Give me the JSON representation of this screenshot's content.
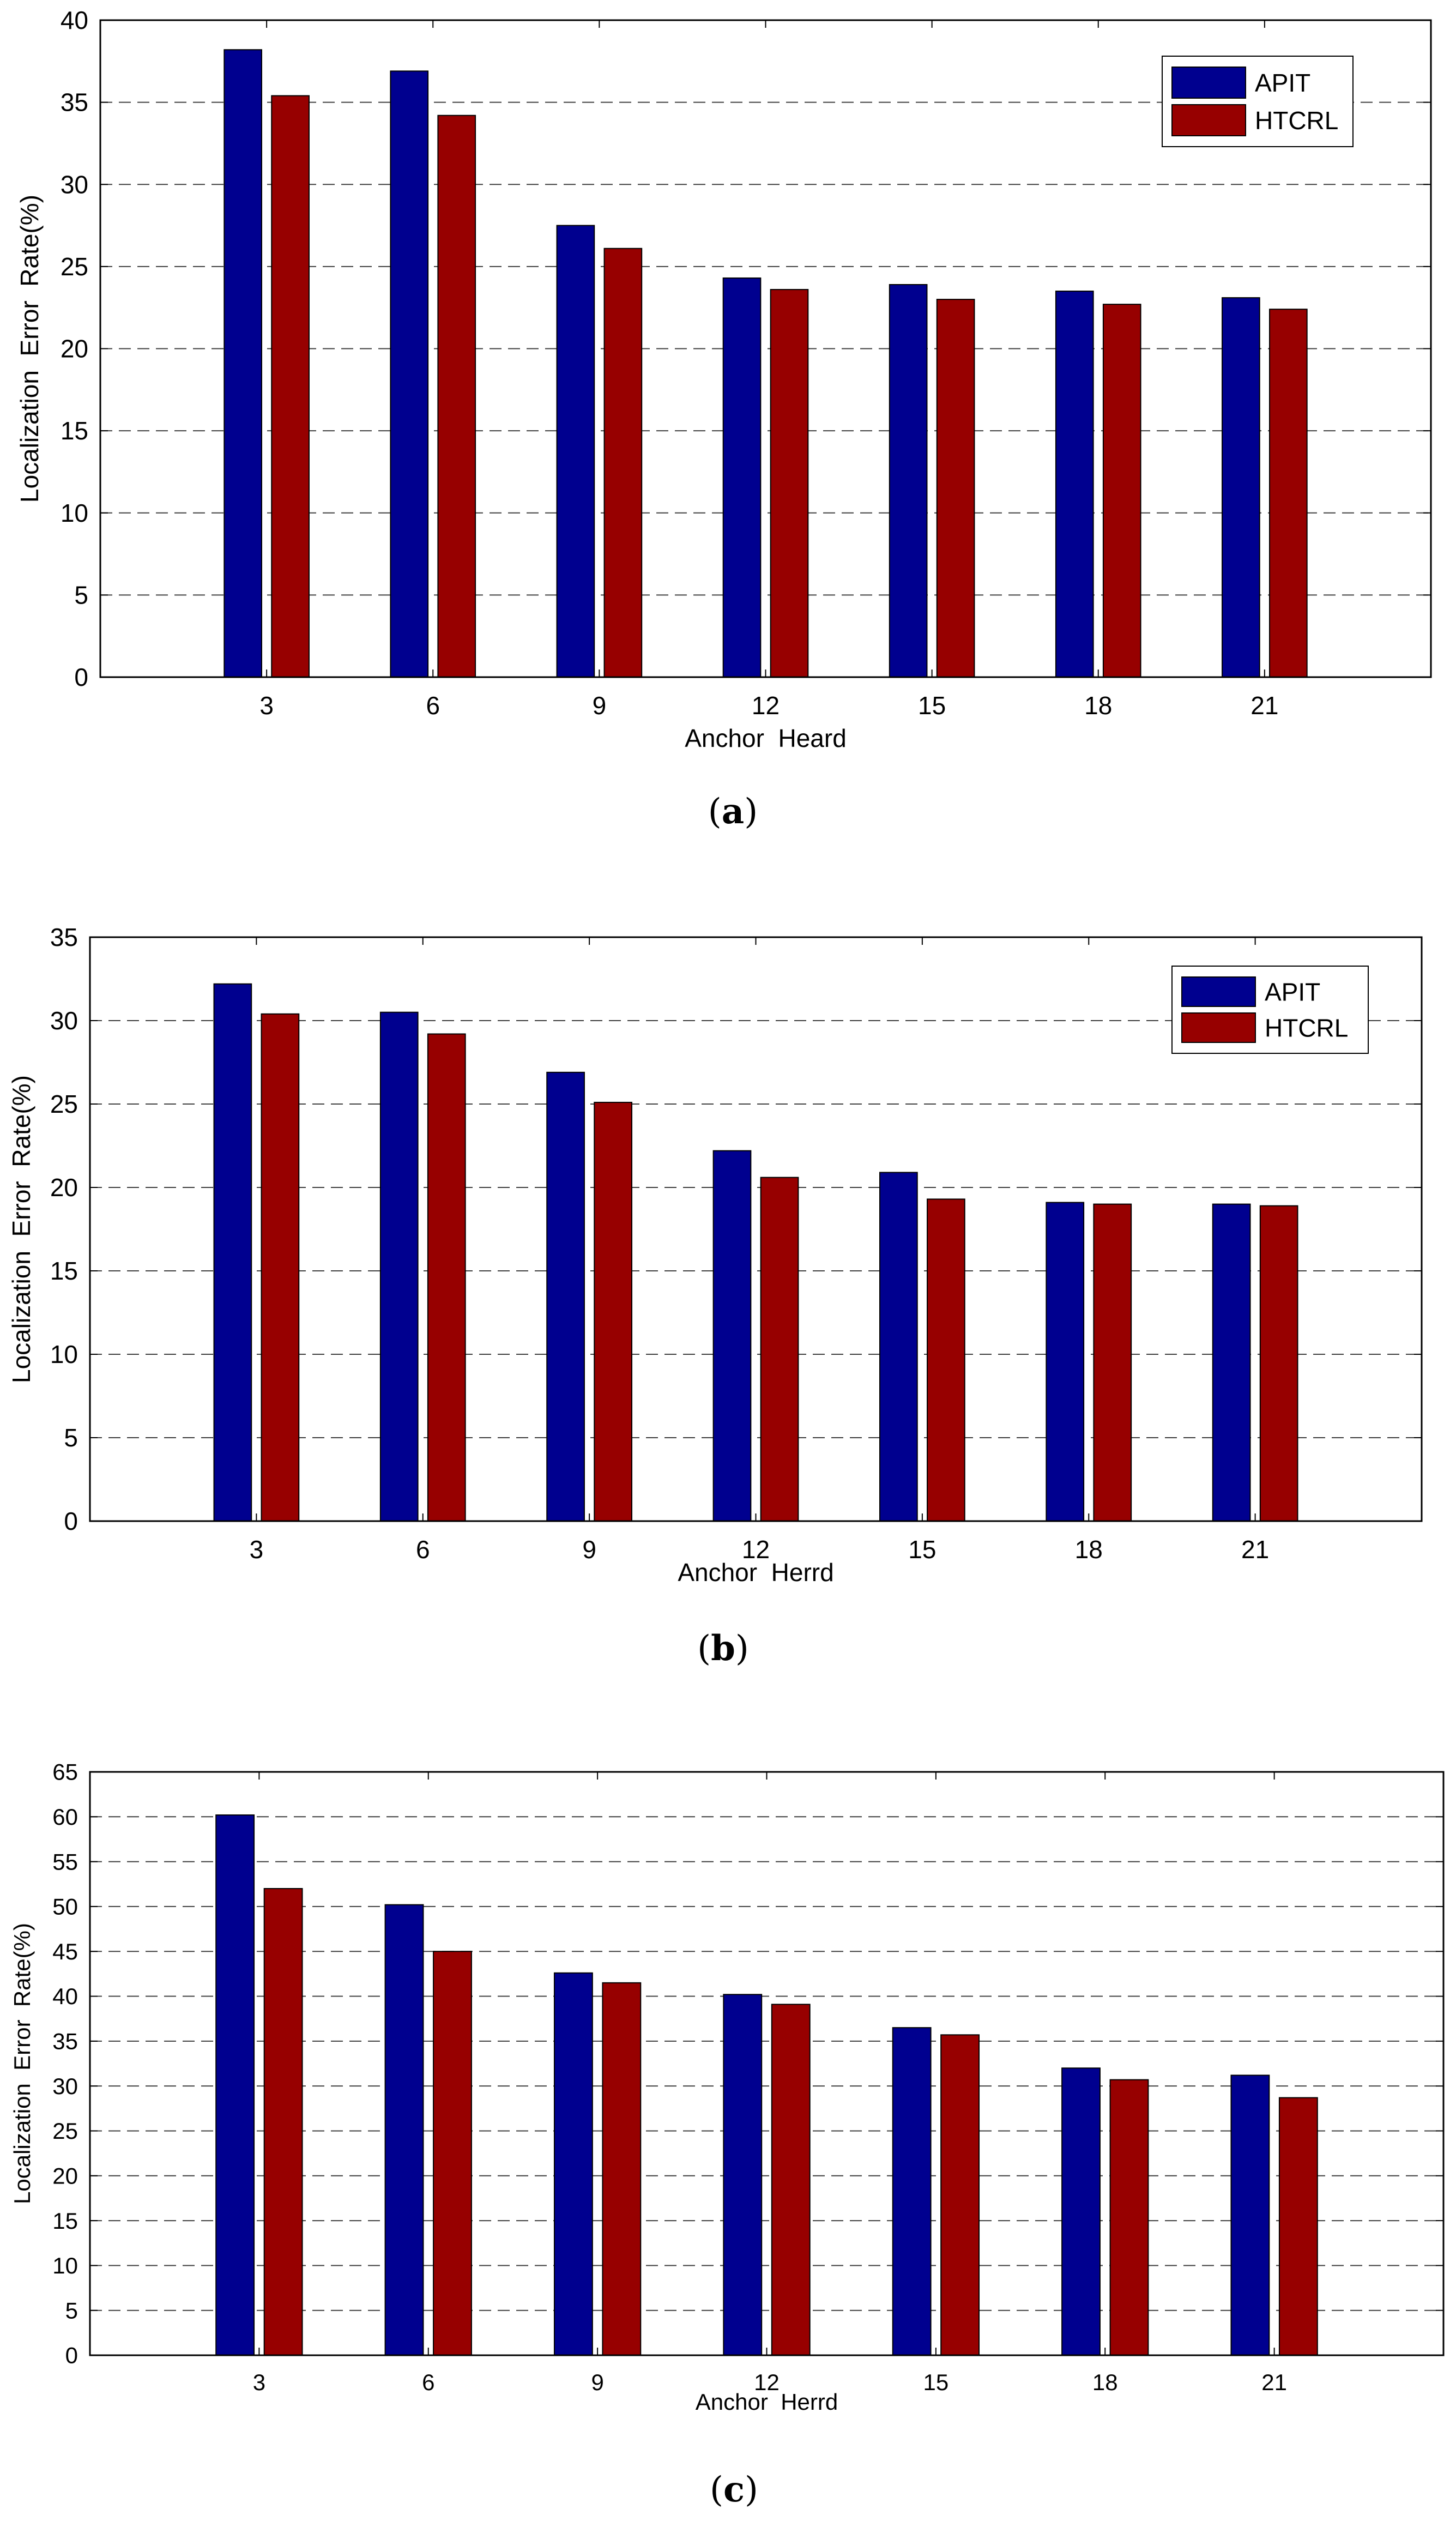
{
  "colors": {
    "apit": "#00008f",
    "htcrl": "#970000",
    "grid": "#000000",
    "background": "#ffffff"
  },
  "chart_data": [
    {
      "type": "bar",
      "caption": "(a)",
      "caption_letter": "a",
      "categories": [
        "3",
        "6",
        "9",
        "12",
        "15",
        "18",
        "21"
      ],
      "series": [
        {
          "name": "APIT",
          "values": [
            38.2,
            36.9,
            27.5,
            24.3,
            23.9,
            23.5,
            23.1
          ]
        },
        {
          "name": "HTCRL",
          "values": [
            35.4,
            34.2,
            26.1,
            23.6,
            23.0,
            22.7,
            22.4
          ]
        }
      ],
      "xlabel": "Anchor  Heard",
      "ylabel": "Localization  Error  Rate(%)",
      "ylim": [
        0,
        40
      ],
      "yticks": [
        "0",
        "5",
        "10",
        "15",
        "20",
        "25",
        "30",
        "35",
        "40"
      ],
      "legend": "top-right",
      "grid": true
    },
    {
      "type": "bar",
      "caption": "(b)",
      "caption_letter": "b",
      "categories": [
        "3",
        "6",
        "9",
        "12",
        "15",
        "18",
        "21"
      ],
      "series": [
        {
          "name": "APIT",
          "values": [
            32.2,
            30.5,
            26.9,
            22.2,
            20.9,
            19.1,
            19.0
          ]
        },
        {
          "name": "HTCRL",
          "values": [
            30.4,
            29.2,
            25.1,
            20.6,
            19.3,
            19.0,
            18.9
          ]
        }
      ],
      "xlabel": "Anchor  Herrd",
      "ylabel": "Localization  Error  Rate(%)",
      "ylim": [
        0,
        35
      ],
      "yticks": [
        "0",
        "5",
        "10",
        "15",
        "20",
        "25",
        "30",
        "35"
      ],
      "legend": "top-right",
      "grid": true
    },
    {
      "type": "bar",
      "caption": "(c)",
      "caption_letter": "c",
      "categories": [
        "3",
        "6",
        "9",
        "12",
        "15",
        "18",
        "21"
      ],
      "series": [
        {
          "name": "APIT",
          "values": [
            60.2,
            50.2,
            42.6,
            40.2,
            36.5,
            32.0,
            31.2
          ]
        },
        {
          "name": "HTCRL",
          "values": [
            52.0,
            45.0,
            41.5,
            39.1,
            35.7,
            30.7,
            28.7
          ]
        }
      ],
      "xlabel": "Anchor  Herrd",
      "ylabel": "Localization  Error  Rate(%)",
      "ylim": [
        0,
        65
      ],
      "yticks": [
        "0",
        "5",
        "10",
        "15",
        "20",
        "25",
        "30",
        "35",
        "40",
        "45",
        "50",
        "55",
        "60",
        "65"
      ],
      "legend": "none",
      "grid": true
    }
  ]
}
